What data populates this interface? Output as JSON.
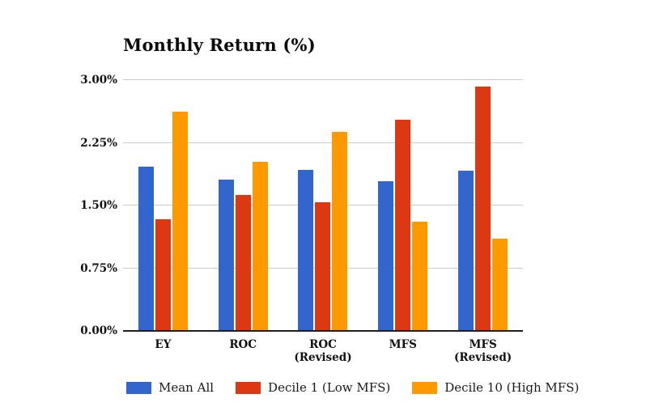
{
  "colors": {
    "series_blue": "#3366CC",
    "series_red": "#DC3912",
    "series_orange": "#FF9900",
    "gridline": "#CCCCCC",
    "axis": "#1F1F1F",
    "text": "#111111",
    "background": "#FFFFFF"
  },
  "chart_data": {
    "type": "bar",
    "title": "Monthly Return (%)",
    "xlabel": "",
    "ylabel": "",
    "categories": [
      "EY",
      "ROC",
      "ROC (Revised)",
      "MFS",
      "MFS (Revised)"
    ],
    "category_lines": [
      [
        "EY"
      ],
      [
        "ROC"
      ],
      [
        "ROC",
        "(Revised)"
      ],
      [
        "MFS"
      ],
      [
        "MFS",
        "(Revised)"
      ]
    ],
    "series": [
      {
        "name": "Mean All",
        "color": "#3366CC",
        "values": [
          1.96,
          1.81,
          1.93,
          1.79,
          1.92
        ]
      },
      {
        "name": "Decile 1 (Low MFS)",
        "color": "#DC3912",
        "values": [
          1.34,
          1.63,
          1.54,
          2.53,
          2.92
        ]
      },
      {
        "name": "Decile 10 (High MFS)",
        "color": "#FF9900",
        "values": [
          2.62,
          2.02,
          2.38,
          1.31,
          1.1
        ]
      }
    ],
    "ylim": [
      0,
      3
    ],
    "yticks": [
      0,
      0.75,
      1.5,
      2.25,
      3
    ],
    "ytick_labels": [
      "0.00%",
      "0.75%",
      "1.50%",
      "2.25%",
      "3.00%"
    ],
    "grid": true,
    "legend_position": "bottom"
  }
}
